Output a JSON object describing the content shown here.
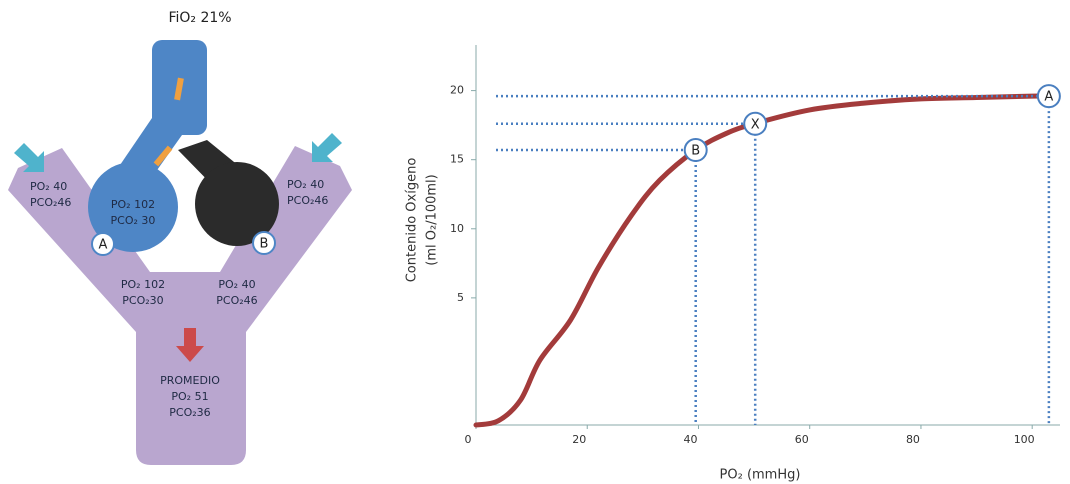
{
  "diagram": {
    "title": "FiO₂ 21%",
    "markers": [
      "A",
      "B"
    ],
    "gas_boxes": [
      [
        "PO₂ 40",
        "PCO₂46"
      ],
      [
        "PO₂ 102",
        "PCO₂ 30"
      ],
      [
        "PO₂ 40",
        "PCO₂46"
      ],
      [
        "PO₂ 102",
        "PCO₂30"
      ],
      [
        "PO₂ 40",
        "PCO₂46"
      ],
      [
        "PROMEDIO",
        "PO₂ 51",
        "PCO₂36"
      ]
    ]
  },
  "chart_data": {
    "type": "line",
    "x_label": "PO₂ (mmHg)",
    "y_label": [
      "Contenido Oxígeno",
      "(ml O₂/100ml)"
    ],
    "xlim": [
      0,
      105
    ],
    "ylim": [
      -4.2,
      23.3
    ],
    "xticks": [
      0,
      20,
      40,
      60,
      80,
      100
    ],
    "yticks": [
      5,
      10,
      15,
      20
    ],
    "series": [
      {
        "color": "#a33b3b",
        "x": [
          0,
          4,
          8,
          11.5,
          17,
          22,
          28,
          33,
          39.5,
          45,
          50,
          60,
          70,
          80,
          90,
          100,
          103
        ],
        "values": [
          -4.2,
          -3.9,
          -2.4,
          0.5,
          3.4,
          7.2,
          11,
          13.5,
          15.7,
          16.9,
          17.6,
          18.6,
          19.1,
          19.4,
          19.5,
          19.6,
          19.6
        ]
      }
    ],
    "points": [
      {
        "label": "A",
        "x": 103,
        "y": 19.6
      },
      {
        "label": "X",
        "x": 50.2,
        "y": 17.6
      },
      {
        "label": "B",
        "x": 39.5,
        "y": 15.7
      }
    ]
  }
}
